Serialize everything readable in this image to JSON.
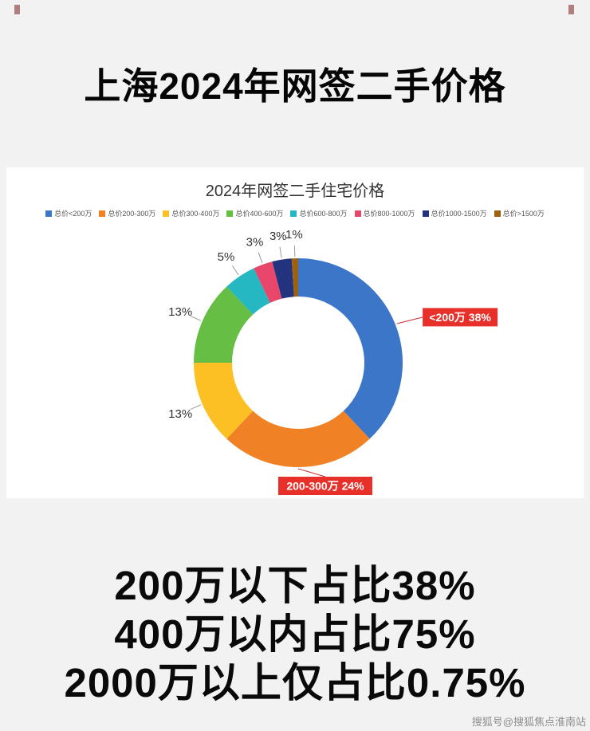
{
  "page": {
    "title": "上海2024年网签二手价格",
    "watermark": "搜狐号@搜狐焦点淮南站"
  },
  "summary_lines": [
    "200万以下占比38%",
    "400万以内占比75%",
    "2000万以上仅占比0.75%"
  ],
  "chart_data": {
    "type": "pie",
    "donut": true,
    "title": "2024年网签二手住宅价格",
    "legend_position": "top",
    "start_angle": "top",
    "direction": "clockwise",
    "total": 100,
    "slices": [
      {
        "label": "总价<200万",
        "value": 38,
        "color": "#3B76C8",
        "annotation": "callout",
        "callout_text": "<200万 38%"
      },
      {
        "label": "总价200-300万",
        "value": 24,
        "color": "#F08124",
        "annotation": "callout",
        "callout_text": "200-300万 24%"
      },
      {
        "label": "总价300-400万",
        "value": 13,
        "color": "#FCBF24",
        "annotation": "percent",
        "percent_text": "13%"
      },
      {
        "label": "总价400-600万",
        "value": 13,
        "color": "#66BE45",
        "annotation": "percent",
        "percent_text": "13%"
      },
      {
        "label": "总价600-800万",
        "value": 5,
        "color": "#25B8C2",
        "annotation": "percent",
        "percent_text": "5%"
      },
      {
        "label": "总价800-1000万",
        "value": 3,
        "color": "#E8476B",
        "annotation": "percent",
        "percent_text": "3%"
      },
      {
        "label": "总价1000-1500万",
        "value": 3,
        "color": "#23337E",
        "annotation": "percent",
        "percent_text": "3%"
      },
      {
        "label": "总价>1500万",
        "value": 1,
        "color": "#9C6210",
        "annotation": "percent",
        "percent_text": "1%"
      }
    ],
    "callout_bg": "#E8302A",
    "callout_text_color": "#FFFFFF",
    "percent_label_color": "#333333"
  }
}
